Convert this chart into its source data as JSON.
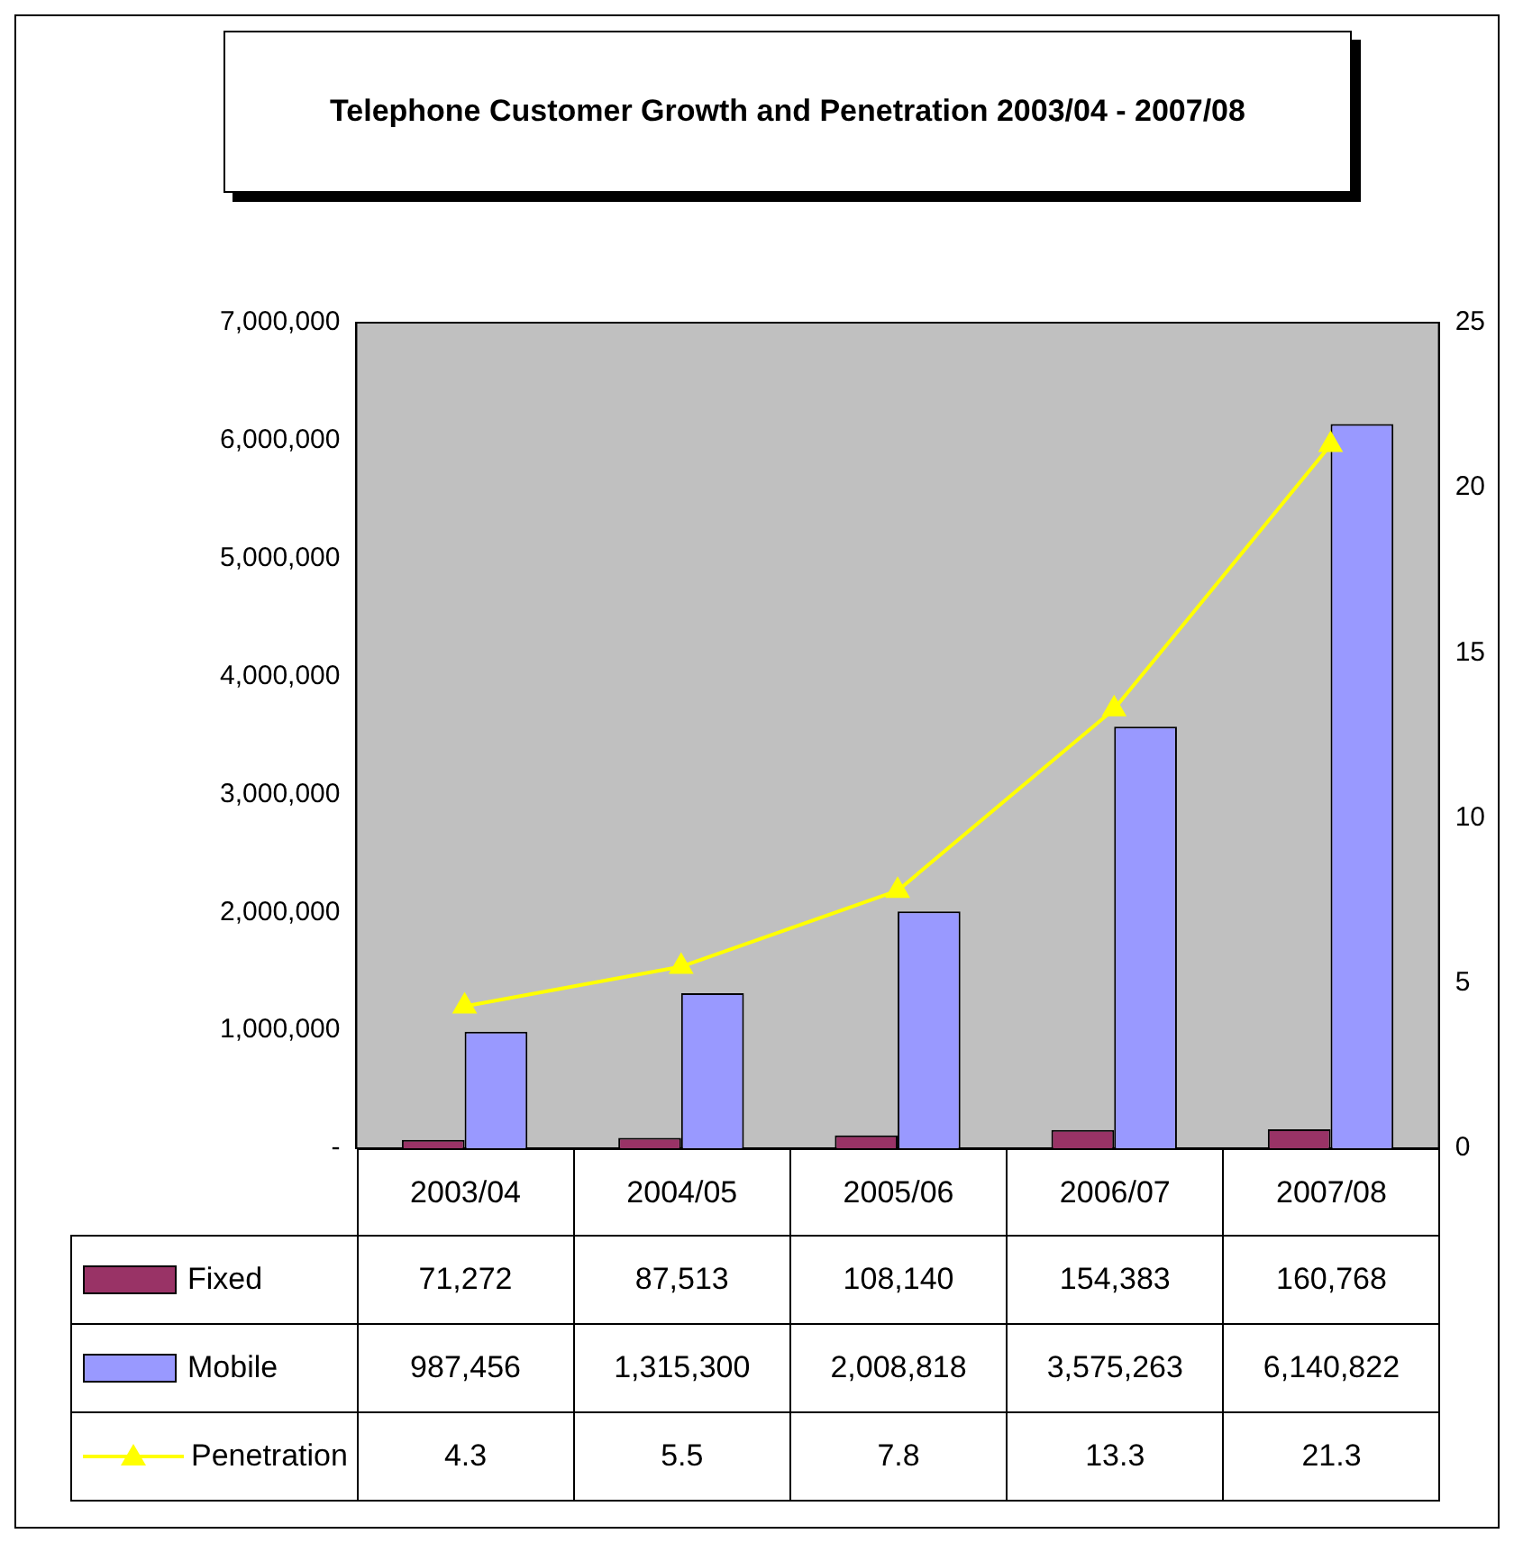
{
  "chart_data": {
    "type": "bar",
    "title": "Telephone Customer Growth and Penetration 2003/04 - 2007/08",
    "categories": [
      "2003/04",
      "2004/05",
      "2005/06",
      "2006/07",
      "2007/08"
    ],
    "series": [
      {
        "name": "Fixed",
        "color": "#993366",
        "values": [
          71272,
          87513,
          108140,
          154383,
          160768
        ],
        "value_labels": [
          "71,272",
          "87,513",
          "108,140",
          "154,383",
          "160,768"
        ]
      },
      {
        "name": "Mobile",
        "color": "#9999ff",
        "values": [
          987456,
          1315300,
          2008818,
          3575263,
          6140822
        ],
        "value_labels": [
          "987,456",
          "1,315,300",
          "2,008,818",
          "3,575,263",
          "6,140,822"
        ]
      },
      {
        "name": "Penetration",
        "type": "line",
        "axis": "y2",
        "color": "#ffff00",
        "marker": "triangle",
        "values": [
          4.3,
          5.5,
          7.8,
          13.3,
          21.3
        ],
        "value_labels": [
          "4.3",
          "5.5",
          "7.8",
          "13.3",
          "21.3"
        ]
      }
    ],
    "ylim": [
      0,
      7000000
    ],
    "yticks": [
      {
        "value": 0,
        "label": "-"
      },
      {
        "value": 1000000,
        "label": "1,000,000"
      },
      {
        "value": 2000000,
        "label": "2,000,000"
      },
      {
        "value": 3000000,
        "label": "3,000,000"
      },
      {
        "value": 4000000,
        "label": "4,000,000"
      },
      {
        "value": 5000000,
        "label": "5,000,000"
      },
      {
        "value": 6000000,
        "label": "6,000,000"
      },
      {
        "value": 7000000,
        "label": "7,000,000"
      }
    ],
    "y2lim": [
      0,
      25
    ],
    "y2ticks": [
      0,
      5,
      10,
      15,
      20,
      25
    ],
    "legend": "bottom"
  }
}
